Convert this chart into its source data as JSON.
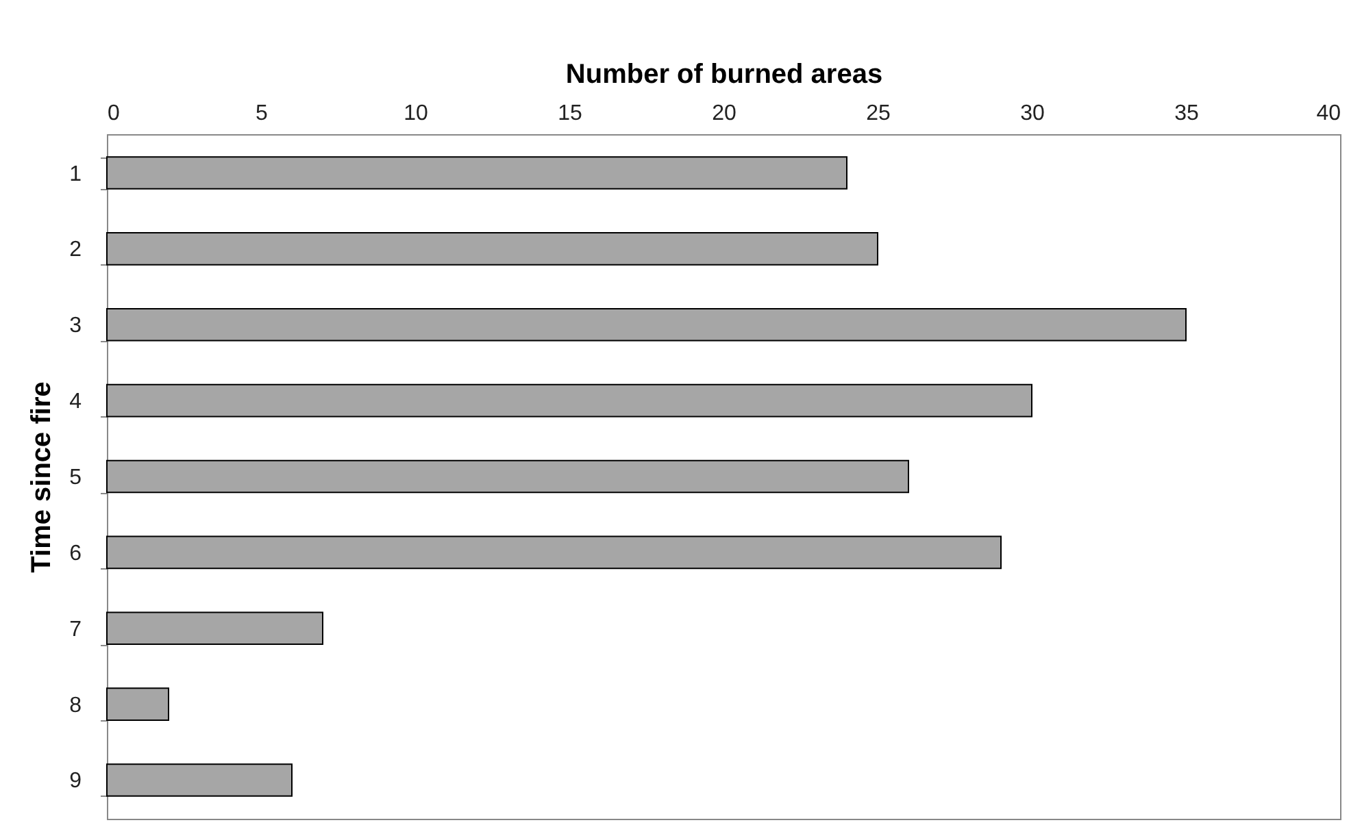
{
  "chart_data": {
    "type": "bar",
    "orientation": "horizontal",
    "xlabel": "Number of burned areas",
    "ylabel": "Time since fire",
    "categories": [
      "1",
      "2",
      "3",
      "4",
      "5",
      "6",
      "7",
      "8",
      "9"
    ],
    "values": [
      24,
      25,
      35,
      30,
      26,
      29,
      7,
      2,
      6
    ],
    "color": "#a6a6a6",
    "xlim": [
      0,
      40
    ],
    "xticks": [
      0,
      5,
      10,
      15,
      20,
      25,
      30,
      35,
      40
    ],
    "grid": false
  }
}
